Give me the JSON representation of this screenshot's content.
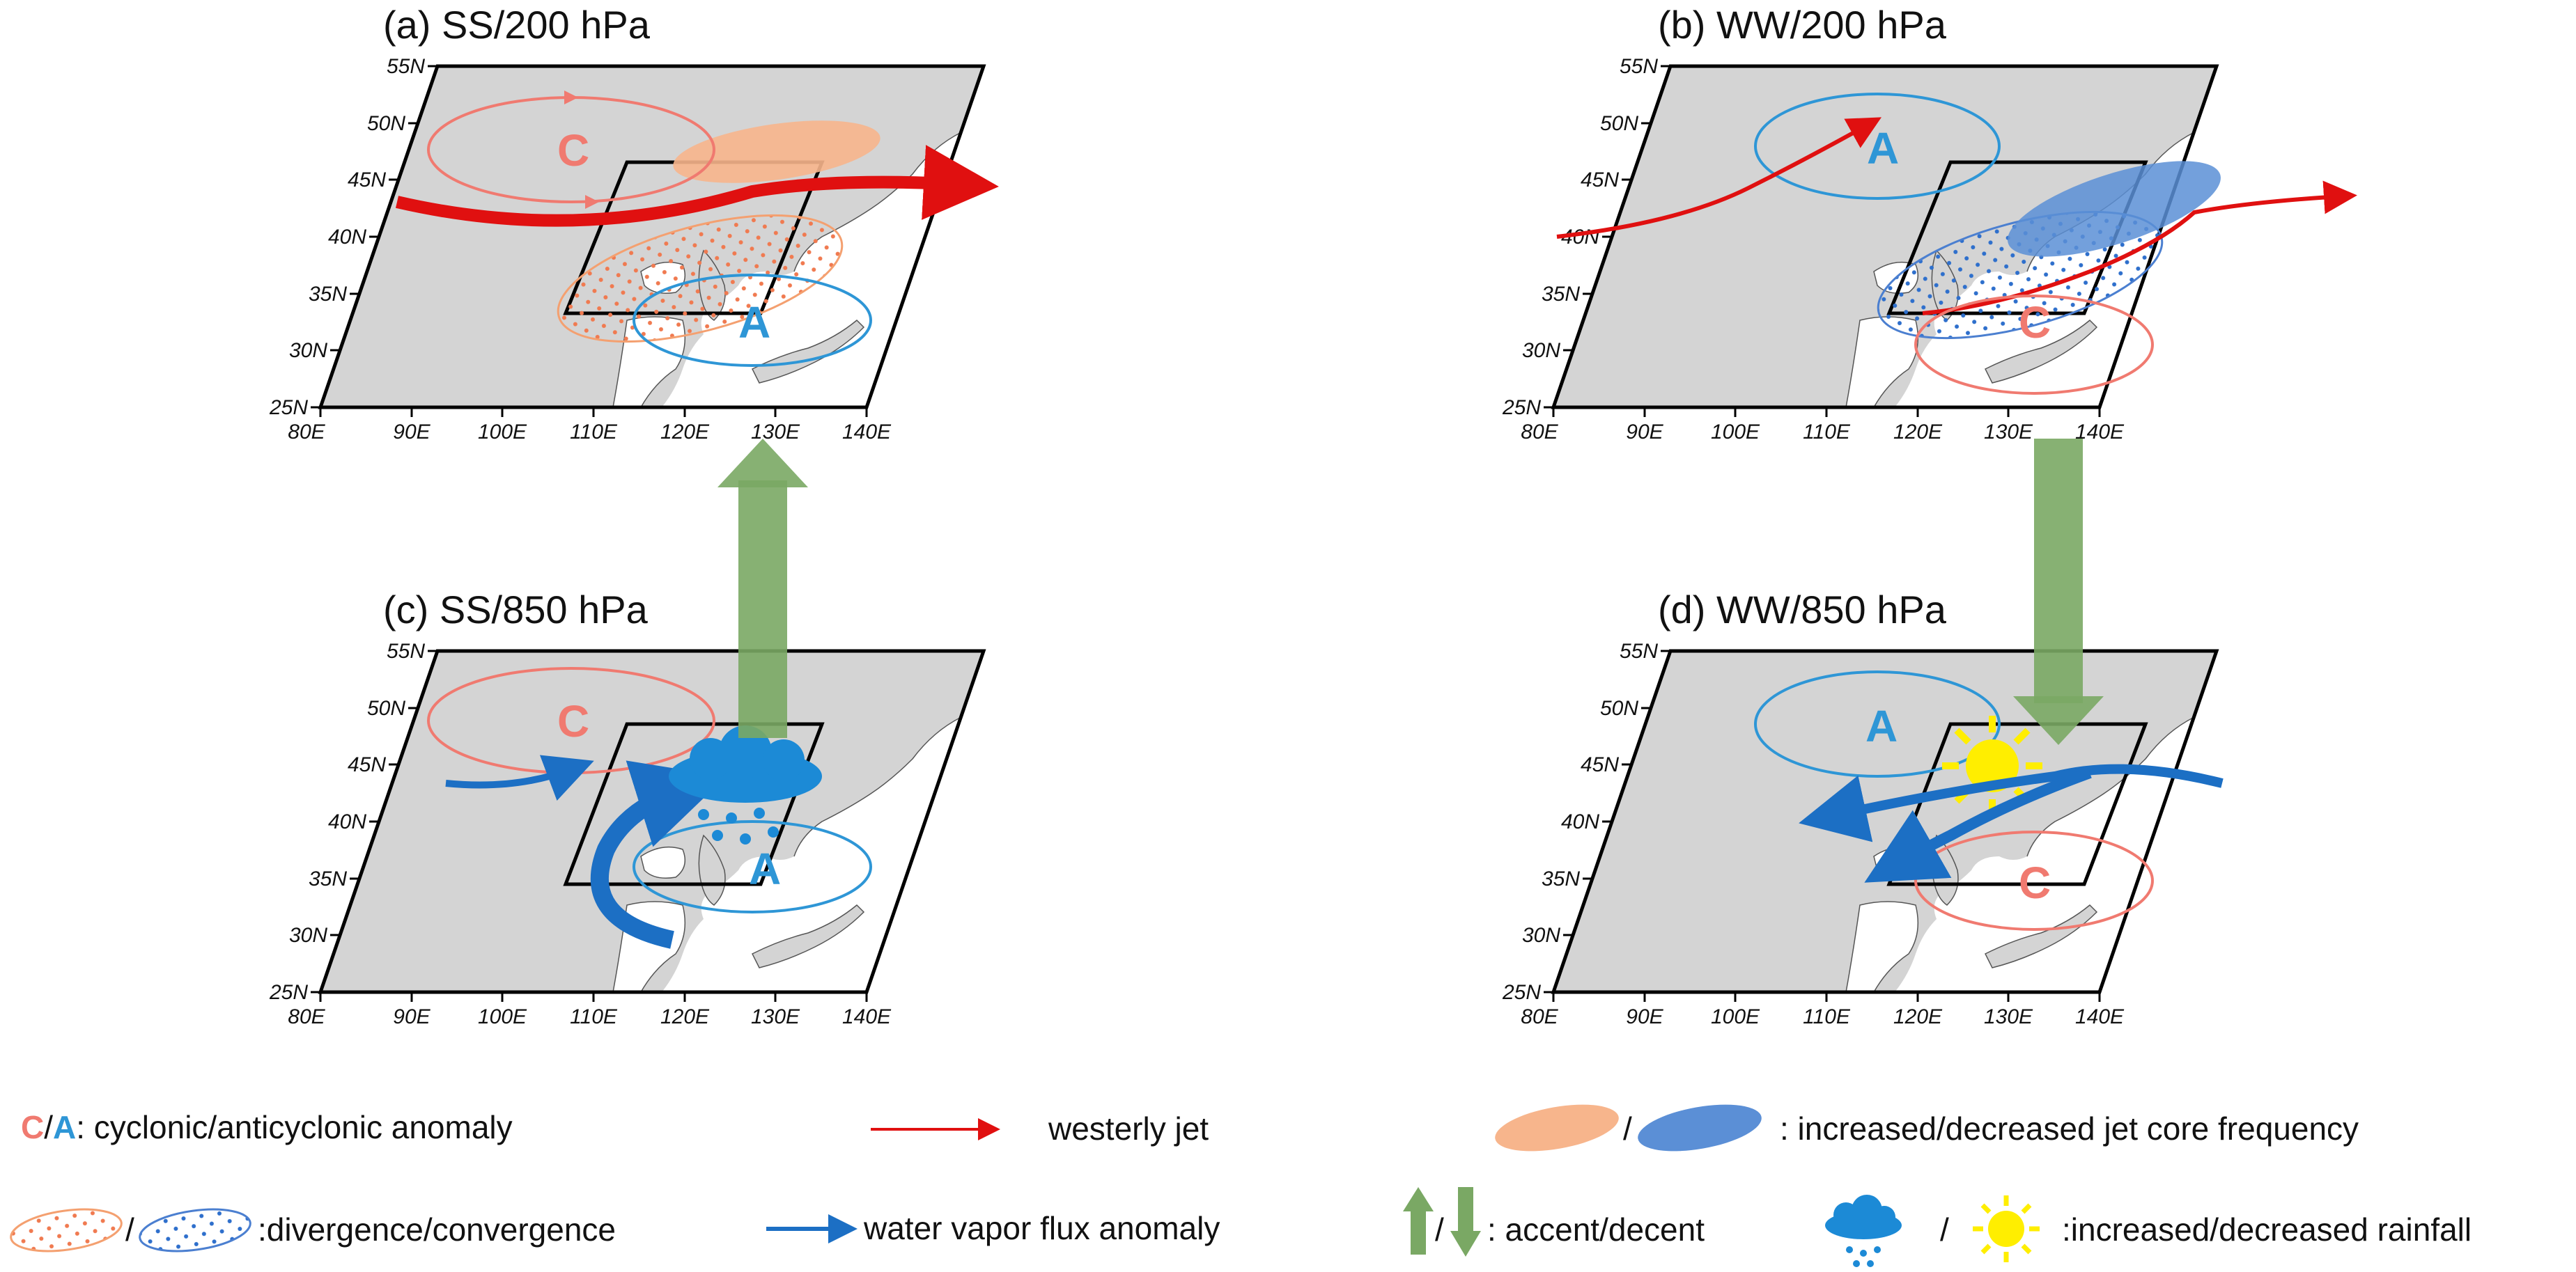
{
  "panels": [
    {
      "id": "a",
      "title": "(a) SS/200 hPa",
      "cyclone": "C",
      "anticyclone": "A"
    },
    {
      "id": "b",
      "title": "(b) WW/200 hPa",
      "cyclone": "C",
      "anticyclone": "A"
    },
    {
      "id": "c",
      "title": "(c) SS/850 hPa",
      "cyclone": "C",
      "anticyclone": "A"
    },
    {
      "id": "d",
      "title": "(d) WW/850 hPa",
      "cyclone": "C",
      "anticyclone": "A"
    }
  ],
  "axes": {
    "lat_labels": [
      "25N",
      "30N",
      "35N",
      "40N",
      "45N",
      "50N",
      "55N"
    ],
    "lon_labels": [
      "80E",
      "90E",
      "100E",
      "110E",
      "120E",
      "130E",
      "140E"
    ]
  },
  "legend": {
    "cyclonic": {
      "c": "C",
      "slash": "/",
      "a": "A",
      "text": ": cyclonic/anticyclonic anomaly"
    },
    "jet": {
      "text": "westerly jet"
    },
    "jet_core": {
      "slash": "/",
      "text": ": increased/decreased jet core frequency"
    },
    "divergence": {
      "slash": "/",
      "text": ":divergence/convergence"
    },
    "vapor": {
      "text": "water vapor flux anomaly"
    },
    "vertical": {
      "slash": "/",
      "text": ": accent/decent"
    },
    "rainfall": {
      "slash": "/",
      "text": ":increased/decreased rainfall"
    }
  },
  "colors": {
    "cyclone": "#f07a70",
    "anticyclone": "#2e96d6",
    "jet": "#e01010",
    "vapor": "#1c6fc4",
    "increased_jet": "#f7b58c",
    "decreased_jet": "#5b8fd6",
    "vertical": "#7aa864",
    "sun": "#ffee00",
    "land": "#d4d4d4"
  }
}
